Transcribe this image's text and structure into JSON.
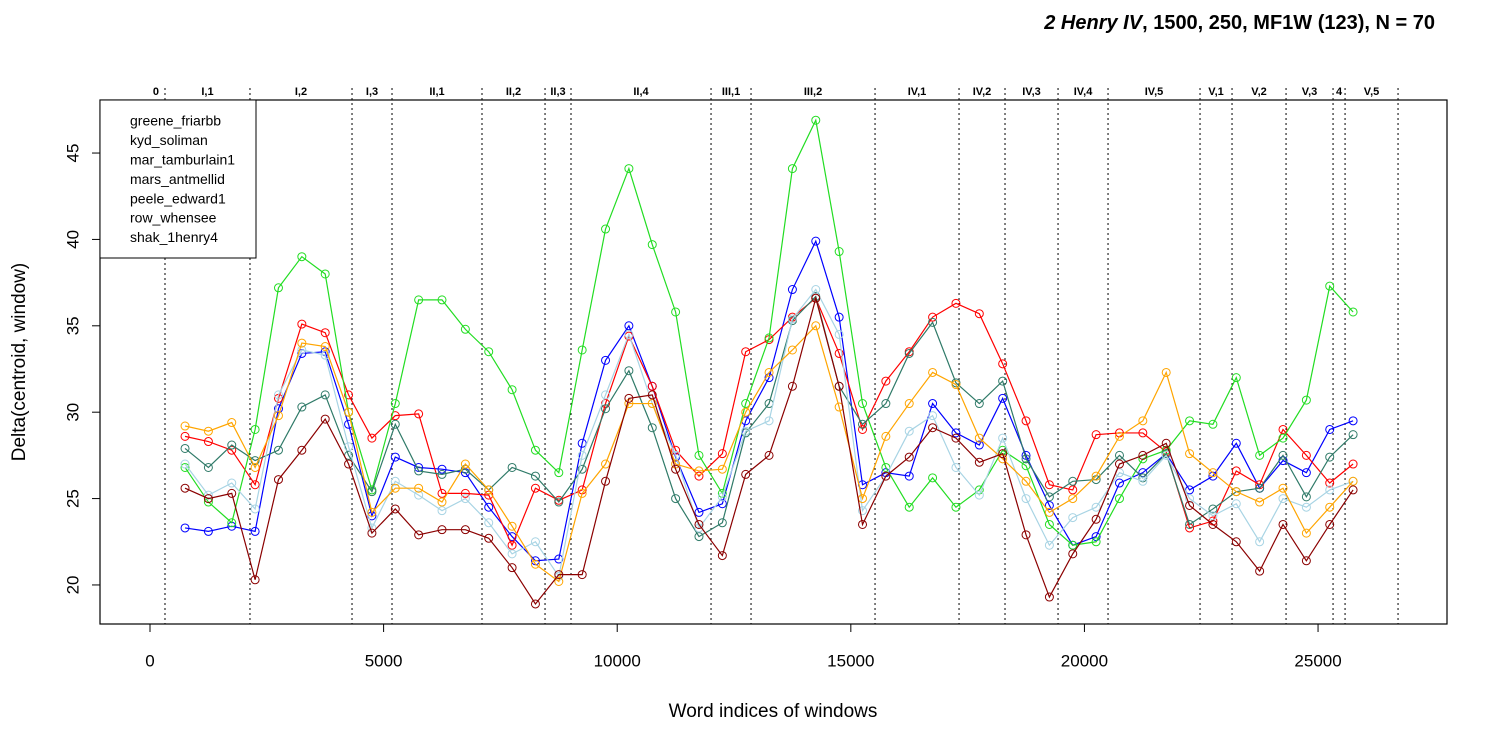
{
  "chart_data": {
    "type": "line",
    "title": [
      "2 Henry IV",
      ", 1500, 250, MF1W (123), N = 70"
    ],
    "x_label": "Word indices of windows",
    "y_label": "Delta(centroid, window)",
    "xlim": [
      -1070,
      27760
    ],
    "ylim": [
      17.74,
      48.07
    ],
    "xticks": [
      0,
      5000,
      10000,
      15000,
      20000,
      25000
    ],
    "yticks": [
      20,
      25,
      30,
      35,
      40,
      45
    ],
    "legend": "top-left",
    "scene_boundaries": [
      321,
      2140,
      4324,
      5180,
      7106,
      8455,
      9011,
      12008,
      12864,
      15518,
      17316,
      18300,
      19435,
      20505,
      22474,
      23159,
      24315,
      25321,
      25578,
      26712
    ],
    "scene_labels": [
      "0",
      "I,1",
      "I,2",
      "I,3",
      "II,1",
      "II,2",
      "II,3",
      "II,4",
      "III,1",
      "III,2",
      "IV,1",
      "IV,2",
      "IV,3",
      "IV,4",
      "IV,5",
      "V,1",
      "V,2",
      "V,3",
      "4",
      "V,5"
    ],
    "x": [
      750,
      1250,
      1750,
      2250,
      2750,
      3250,
      3750,
      4250,
      4750,
      5250,
      5750,
      6250,
      6750,
      7250,
      7750,
      8250,
      8750,
      9250,
      9750,
      10250,
      10750,
      11250,
      11750,
      12250,
      12750,
      13250,
      13750,
      14250,
      14750,
      15250,
      15750,
      16250,
      16750,
      17250,
      17750,
      18250,
      18750,
      19250,
      19750,
      20250,
      20750,
      21250,
      21750,
      22250,
      22750,
      23250,
      23750,
      24250,
      24750,
      25250,
      25750
    ],
    "series": [
      {
        "name": "greene_friarbb",
        "color": "#0000ff",
        "values": [
          23.3,
          23.1,
          23.4,
          23.1,
          30.2,
          33.4,
          33.5,
          29.3,
          24,
          27.4,
          26.8,
          26.7,
          26.5,
          24.5,
          22.8,
          21.4,
          21.5,
          28.2,
          33,
          35,
          31.5,
          27.4,
          24.2,
          24.7,
          29.5,
          32,
          37.1,
          39.9,
          35.5,
          25.8,
          26.5,
          26.3,
          30.5,
          28.8,
          28.1,
          30.8,
          27.5,
          24.6,
          22.3,
          22.8,
          25.9,
          26.5,
          27.6,
          25.5,
          26.3,
          28.2,
          25.6,
          27.2,
          26.5,
          29,
          29.5
        ]
      },
      {
        "name": "kyd_soliman",
        "color": "#ff0000",
        "values": [
          28.6,
          28.3,
          27.8,
          25.8,
          30.8,
          35.1,
          34.6,
          31,
          28.5,
          29.8,
          29.9,
          25.3,
          25.3,
          25.2,
          22.3,
          25.6,
          24.9,
          25.5,
          30.5,
          34.4,
          31.5,
          27.8,
          26.3,
          27.6,
          33.5,
          34.2,
          35.5,
          36.6,
          33.4,
          29,
          31.8,
          33.5,
          35.5,
          36.3,
          35.7,
          32.8,
          29.5,
          25.8,
          25.5,
          28.7,
          28.8,
          28.8,
          27.7,
          23.3,
          23.7,
          26.6,
          25.8,
          29,
          27.5,
          25.9,
          27
        ]
      },
      {
        "name": "mar_tamburlain1",
        "color": "#22dd22",
        "values": [
          26.8,
          24.8,
          23.6,
          29,
          37.2,
          39,
          38,
          30,
          25.5,
          30.5,
          36.5,
          36.5,
          34.8,
          33.5,
          31.3,
          27.8,
          26.5,
          33.6,
          40.6,
          44.1,
          39.7,
          35.8,
          27.5,
          25.3,
          30.5,
          34.3,
          44.1,
          46.9,
          39.3,
          30.5,
          26.8,
          24.5,
          26.2,
          24.5,
          25.5,
          27.8,
          26.9,
          23.5,
          22.3,
          22.5,
          25,
          27.3,
          27.8,
          29.5,
          29.3,
          32,
          27.5,
          28.5,
          30.7,
          37.3,
          35.8
        ]
      },
      {
        "name": "mars_antmellid",
        "color": "#2f7a68",
        "values": [
          27.9,
          26.8,
          28.1,
          27.2,
          27.8,
          30.3,
          31,
          27.5,
          25.4,
          29.3,
          26.6,
          26.4,
          26.7,
          25.5,
          26.8,
          26.3,
          24.8,
          26.7,
          30.2,
          32.4,
          29.1,
          25,
          22.8,
          23.6,
          28.8,
          30.5,
          35.3,
          36.7,
          31.5,
          29.3,
          30.5,
          33.4,
          35.2,
          31.7,
          30.5,
          31.8,
          27.3,
          25.1,
          26,
          26.1,
          27.5,
          26.2,
          27.6,
          23.5,
          24.4,
          25.4,
          25.6,
          27.5,
          25.1,
          27.4,
          28.7
        ]
      },
      {
        "name": "peele_edward1",
        "color": "#a8d4e4",
        "values": [
          27,
          25.2,
          25.9,
          24.4,
          31,
          33.6,
          33.3,
          28,
          23.3,
          26,
          25.2,
          24.3,
          25,
          23.6,
          21.8,
          22.5,
          20.5,
          27.5,
          31,
          34.5,
          30.5,
          27.5,
          23.3,
          25.1,
          28.9,
          29.5,
          35.4,
          37.1,
          34.5,
          24.3,
          26.3,
          28.9,
          29.8,
          26.8,
          25.2,
          28.5,
          25,
          22.3,
          23.9,
          24.5,
          26.5,
          26,
          27.5,
          25,
          24,
          24.7,
          22.5,
          25,
          24.5,
          25.5,
          26
        ]
      },
      {
        "name": "row_whensee",
        "color": "#ffa500",
        "values": [
          29.2,
          28.9,
          29.4,
          26.8,
          29.8,
          34,
          33.8,
          30,
          24.2,
          25.6,
          25.6,
          24.8,
          27,
          25.5,
          23.4,
          21.2,
          20.2,
          25.3,
          27,
          30.5,
          30.5,
          27,
          26.6,
          26.7,
          30,
          32.3,
          33.6,
          35,
          30.3,
          25,
          28.6,
          30.5,
          32.3,
          31.6,
          28.5,
          27.3,
          26,
          24.2,
          25,
          26.3,
          28.6,
          29.5,
          32.3,
          27.6,
          26.5,
          25.4,
          24.8,
          25.6,
          23,
          24.5,
          26
        ]
      },
      {
        "name": "shak_1henry4",
        "color": "#8b0000",
        "values": [
          25.6,
          25,
          25.3,
          20.3,
          26.1,
          27.8,
          29.6,
          27,
          23,
          24.4,
          22.9,
          23.2,
          23.2,
          22.7,
          21,
          18.9,
          20.6,
          20.6,
          26,
          30.8,
          31,
          26.7,
          23.5,
          21.7,
          26.4,
          27.5,
          31.5,
          36.6,
          31.5,
          23.5,
          26.3,
          27.4,
          29.1,
          28.5,
          27.1,
          27.6,
          22.9,
          19.3,
          21.8,
          23.8,
          27,
          27.5,
          28.2,
          24.6,
          23.5,
          22.5,
          20.8,
          23.5,
          21.4,
          23.5,
          25.5
        ]
      }
    ]
  }
}
